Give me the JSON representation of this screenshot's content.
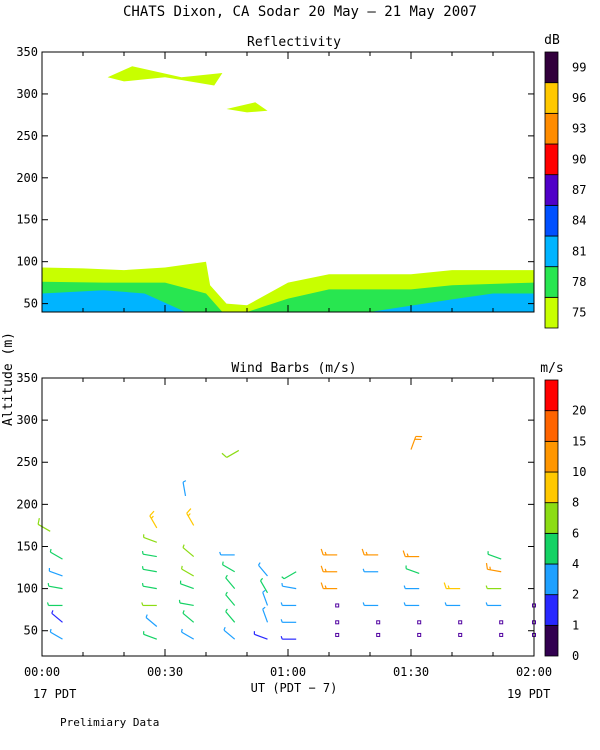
{
  "title": "CHATS Dixon, CA  Sodar  20 May — 21 May 2007",
  "footer": "Prelimiary Data",
  "shared_y_label": "Altitude (m)",
  "x_axis": {
    "ticks": [
      "00:00",
      "00:30",
      "01:00",
      "01:30",
      "02:00"
    ],
    "label": "UT  (PDT − 7)",
    "left_note": "17 PDT",
    "right_note": "19 PDT"
  },
  "chart_data": [
    {
      "type": "area",
      "title": "Reflectivity",
      "ylim": [
        40,
        350
      ],
      "y_ticks": [
        50,
        100,
        150,
        200,
        250,
        300,
        350
      ],
      "xlim": [
        0,
        120
      ],
      "colorbar": {
        "unit": "dB",
        "levels": [
          75,
          78,
          81,
          84,
          87,
          90,
          93,
          96,
          99
        ],
        "colors": [
          "#c8ff00",
          "#28e650",
          "#00b4ff",
          "#0050ff",
          "#5000c8",
          "#ff0000",
          "#ff8c00",
          "#ffc800",
          "#32003c"
        ]
      },
      "layers": [
        {
          "level": 75,
          "color": "#c8ff00",
          "points": [
            [
              0,
              40
            ],
            [
              0,
              93
            ],
            [
              10,
              92
            ],
            [
              20,
              90
            ],
            [
              30,
              93
            ],
            [
              40,
              100
            ],
            [
              41,
              72
            ],
            [
              45,
              50
            ],
            [
              50,
              48
            ],
            [
              60,
              75
            ],
            [
              70,
              85
            ],
            [
              90,
              85
            ],
            [
              100,
              90
            ],
            [
              120,
              90
            ],
            [
              120,
              40
            ]
          ]
        },
        {
          "level": 78,
          "color": "#28e650",
          "points": [
            [
              0,
              40
            ],
            [
              0,
              76
            ],
            [
              15,
              75
            ],
            [
              30,
              75
            ],
            [
              40,
              62
            ],
            [
              44,
              40
            ],
            [
              50,
              40
            ],
            [
              60,
              56
            ],
            [
              70,
              67
            ],
            [
              90,
              67
            ],
            [
              100,
              72
            ],
            [
              120,
              75
            ],
            [
              120,
              40
            ]
          ]
        },
        {
          "level": 81,
          "color": "#00b4ff",
          "points": [
            [
              0,
              40
            ],
            [
              0,
              62
            ],
            [
              15,
              66
            ],
            [
              25,
              62
            ],
            [
              35,
              40
            ],
            [
              80,
              40
            ],
            [
              100,
              55
            ],
            [
              110,
              62
            ],
            [
              120,
              62
            ],
            [
              120,
              40
            ]
          ]
        },
        {
          "level": 75,
          "color": "#c8ff00",
          "points": [
            [
              16,
              320
            ],
            [
              22,
              333
            ],
            [
              34,
              320
            ],
            [
              44,
              325
            ],
            [
              42,
              310
            ],
            [
              30,
              320
            ],
            [
              20,
              315
            ]
          ]
        },
        {
          "level": 75,
          "color": "#c8ff00",
          "points": [
            [
              45,
              282
            ],
            [
              52,
              290
            ],
            [
              55,
              280
            ],
            [
              50,
              278
            ]
          ]
        }
      ]
    },
    {
      "type": "scatter",
      "title": "Wind Barbs (m/s)",
      "ylim": [
        20,
        350
      ],
      "y_ticks": [
        50,
        100,
        150,
        200,
        250,
        300,
        350
      ],
      "xlim": [
        0,
        120
      ],
      "colorbar": {
        "unit": "m/s",
        "levels": [
          0,
          1,
          2,
          4,
          6,
          8,
          10,
          15,
          20
        ],
        "colors": [
          "#320050",
          "#2828ff",
          "#1ea0ff",
          "#14d264",
          "#8cdc14",
          "#ffc800",
          "#ff9600",
          "#ff6400",
          "#ff0000"
        ]
      },
      "barbs": [
        {
          "t": 5,
          "alt": 40,
          "dir": 300,
          "speed": 3,
          "color": "#1ea0ff"
        },
        {
          "t": 5,
          "alt": 60,
          "dir": 310,
          "speed": 1,
          "color": "#2828ff"
        },
        {
          "t": 5,
          "alt": 80,
          "dir": 270,
          "speed": 3,
          "color": "#14d264"
        },
        {
          "t": 5,
          "alt": 100,
          "dir": 280,
          "speed": 3,
          "color": "#14d264"
        },
        {
          "t": 5,
          "alt": 115,
          "dir": 290,
          "speed": 3,
          "color": "#1ea0ff"
        },
        {
          "t": 5,
          "alt": 135,
          "dir": 300,
          "speed": 3,
          "color": "#14d264"
        },
        {
          "t": 2,
          "alt": 168,
          "dir": 300,
          "speed": 5,
          "color": "#8cdc14"
        },
        {
          "t": 28,
          "alt": 40,
          "dir": 290,
          "speed": 3,
          "color": "#14d264"
        },
        {
          "t": 28,
          "alt": 55,
          "dir": 310,
          "speed": 3,
          "color": "#1ea0ff"
        },
        {
          "t": 28,
          "alt": 80,
          "dir": 270,
          "speed": 4,
          "color": "#8cdc14"
        },
        {
          "t": 28,
          "alt": 100,
          "dir": 280,
          "speed": 4,
          "color": "#14d264"
        },
        {
          "t": 28,
          "alt": 120,
          "dir": 280,
          "speed": 4,
          "color": "#14d264"
        },
        {
          "t": 28,
          "alt": 138,
          "dir": 280,
          "speed": 4,
          "color": "#14d264"
        },
        {
          "t": 28,
          "alt": 155,
          "dir": 290,
          "speed": 4,
          "color": "#8cdc14"
        },
        {
          "t": 28,
          "alt": 172,
          "dir": 330,
          "speed": 8,
          "color": "#ffc800"
        },
        {
          "t": 37,
          "alt": 40,
          "dir": 300,
          "speed": 3,
          "color": "#1ea0ff"
        },
        {
          "t": 37,
          "alt": 60,
          "dir": 310,
          "speed": 3,
          "color": "#14d264"
        },
        {
          "t": 37,
          "alt": 80,
          "dir": 280,
          "speed": 4,
          "color": "#14d264"
        },
        {
          "t": 37,
          "alt": 100,
          "dir": 290,
          "speed": 4,
          "color": "#14d264"
        },
        {
          "t": 37,
          "alt": 115,
          "dir": 300,
          "speed": 4,
          "color": "#8cdc14"
        },
        {
          "t": 37,
          "alt": 138,
          "dir": 310,
          "speed": 4,
          "color": "#8cdc14"
        },
        {
          "t": 37,
          "alt": 175,
          "dir": 330,
          "speed": 8,
          "color": "#ffc800"
        },
        {
          "t": 35,
          "alt": 210,
          "dir": 350,
          "speed": 3,
          "color": "#1ea0ff"
        },
        {
          "t": 47,
          "alt": 40,
          "dir": 310,
          "speed": 3,
          "color": "#1ea0ff"
        },
        {
          "t": 47,
          "alt": 60,
          "dir": 320,
          "speed": 3,
          "color": "#14d264"
        },
        {
          "t": 47,
          "alt": 80,
          "dir": 320,
          "speed": 3,
          "color": "#14d264"
        },
        {
          "t": 47,
          "alt": 100,
          "dir": 320,
          "speed": 3,
          "color": "#14d264"
        },
        {
          "t": 47,
          "alt": 120,
          "dir": 300,
          "speed": 3,
          "color": "#14d264"
        },
        {
          "t": 47,
          "alt": 140,
          "dir": 270,
          "speed": 3,
          "color": "#1ea0ff"
        },
        {
          "t": 48,
          "alt": 264,
          "dir": 240,
          "speed": 5,
          "color": "#8cdc14"
        },
        {
          "t": 55,
          "alt": 40,
          "dir": 290,
          "speed": 1,
          "color": "#2828ff"
        },
        {
          "t": 55,
          "alt": 60,
          "dir": 340,
          "speed": 3,
          "color": "#1ea0ff"
        },
        {
          "t": 55,
          "alt": 80,
          "dir": 340,
          "speed": 3,
          "color": "#1ea0ff"
        },
        {
          "t": 55,
          "alt": 95,
          "dir": 330,
          "speed": 3,
          "color": "#14d264"
        },
        {
          "t": 55,
          "alt": 115,
          "dir": 320,
          "speed": 3,
          "color": "#1ea0ff"
        },
        {
          "t": 62,
          "alt": 40,
          "dir": 270,
          "speed": 1,
          "color": "#2828ff"
        },
        {
          "t": 62,
          "alt": 60,
          "dir": 270,
          "speed": 2,
          "color": "#1ea0ff"
        },
        {
          "t": 62,
          "alt": 80,
          "dir": 270,
          "speed": 2,
          "color": "#1ea0ff"
        },
        {
          "t": 62,
          "alt": 100,
          "dir": 280,
          "speed": 2,
          "color": "#1ea0ff"
        },
        {
          "t": 62,
          "alt": 120,
          "dir": 240,
          "speed": 4,
          "color": "#14d264"
        },
        {
          "t": 72,
          "alt": 100,
          "dir": 270,
          "speed": 8,
          "color": "#ff9600"
        },
        {
          "t": 72,
          "alt": 120,
          "dir": 270,
          "speed": 8,
          "color": "#ff9600"
        },
        {
          "t": 72,
          "alt": 140,
          "dir": 270,
          "speed": 8,
          "color": "#ff9600"
        },
        {
          "t": 82,
          "alt": 80,
          "dir": 270,
          "speed": 2,
          "color": "#1ea0ff"
        },
        {
          "t": 82,
          "alt": 120,
          "dir": 270,
          "speed": 3,
          "color": "#1ea0ff"
        },
        {
          "t": 82,
          "alt": 140,
          "dir": 270,
          "speed": 8,
          "color": "#ff9600"
        },
        {
          "t": 90,
          "alt": 265,
          "dir": 20,
          "speed": 10,
          "color": "#ff9600"
        },
        {
          "t": 92,
          "alt": 80,
          "dir": 270,
          "speed": 2,
          "color": "#1ea0ff"
        },
        {
          "t": 92,
          "alt": 100,
          "dir": 270,
          "speed": 3,
          "color": "#1ea0ff"
        },
        {
          "t": 92,
          "alt": 118,
          "dir": 290,
          "speed": 3,
          "color": "#14d264"
        },
        {
          "t": 92,
          "alt": 138,
          "dir": 270,
          "speed": 8,
          "color": "#ff9600"
        },
        {
          "t": 102,
          "alt": 80,
          "dir": 270,
          "speed": 2,
          "color": "#1ea0ff"
        },
        {
          "t": 102,
          "alt": 100,
          "dir": 270,
          "speed": 8,
          "color": "#ffc800"
        },
        {
          "t": 112,
          "alt": 80,
          "dir": 270,
          "speed": 2,
          "color": "#1ea0ff"
        },
        {
          "t": 112,
          "alt": 100,
          "dir": 270,
          "speed": 4,
          "color": "#8cdc14"
        },
        {
          "t": 112,
          "alt": 120,
          "dir": 280,
          "speed": 8,
          "color": "#ff9600"
        },
        {
          "t": 112,
          "alt": 135,
          "dir": 290,
          "speed": 4,
          "color": "#14d264"
        }
      ],
      "calm": [
        {
          "t": 72,
          "alt": 80
        },
        {
          "t": 72,
          "alt": 60
        },
        {
          "t": 72,
          "alt": 45
        },
        {
          "t": 82,
          "alt": 60
        },
        {
          "t": 82,
          "alt": 45
        },
        {
          "t": 92,
          "alt": 60
        },
        {
          "t": 92,
          "alt": 45
        },
        {
          "t": 102,
          "alt": 60
        },
        {
          "t": 102,
          "alt": 45
        },
        {
          "t": 112,
          "alt": 60
        },
        {
          "t": 112,
          "alt": 45
        },
        {
          "t": 120,
          "alt": 80
        },
        {
          "t": 120,
          "alt": 60
        },
        {
          "t": 120,
          "alt": 45
        }
      ]
    }
  ]
}
